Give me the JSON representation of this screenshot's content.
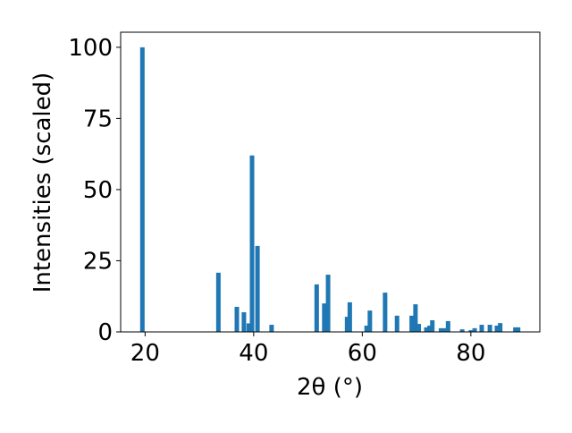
{
  "chart_data": {
    "type": "bar",
    "xlabel": "2θ (°)",
    "ylabel": "Intensities (scaled)",
    "x": [
      19.5,
      33.5,
      36.9,
      38.2,
      39.1,
      39.7,
      40.7,
      43.3,
      51.6,
      53.0,
      53.7,
      57.2,
      57.7,
      60.8,
      61.4,
      64.2,
      66.4,
      69.1,
      69.8,
      70.4,
      71.8,
      72.4,
      72.9,
      74.5,
      75.2,
      75.8,
      78.4,
      80.0,
      80.7,
      82.0,
      83.5,
      84.8,
      85.4,
      88.2,
      88.7
    ],
    "values": [
      100,
      20.8,
      8.8,
      6.9,
      3,
      62,
      30.2,
      2.5,
      16.7,
      10,
      20.1,
      5.3,
      10.4,
      2.2,
      7.5,
      13.8,
      5.7,
      5.7,
      9.7,
      2.8,
      1.6,
      2.2,
      4.1,
      1.3,
      1.3,
      3.8,
      0.9,
      0.6,
      1.3,
      2.5,
      2.5,
      2.2,
      3.1,
      1.6,
      1.6
    ],
    "color": "#1f77b4",
    "xlim": [
      15.5,
      92.7
    ],
    "xticks": [
      20,
      40,
      60,
      80
    ],
    "ylim": [
      0,
      105.3
    ],
    "yticks": [
      0,
      25,
      50,
      75,
      100
    ]
  }
}
